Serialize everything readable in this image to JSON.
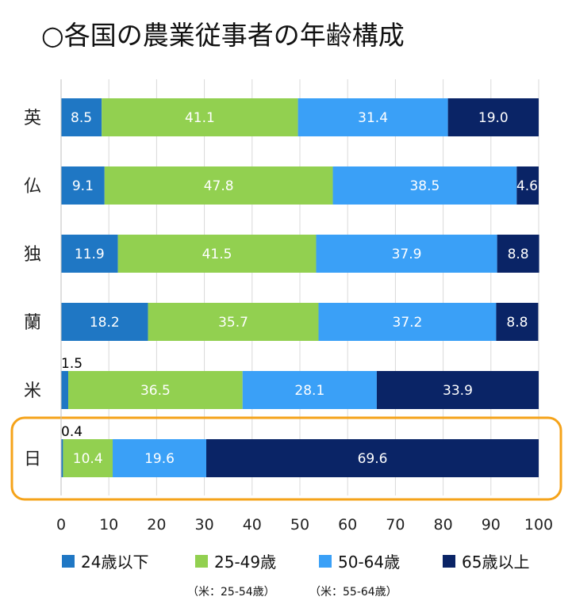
{
  "title": "○各国の農業従事者の年齢構成",
  "chart_data": {
    "type": "bar",
    "orientation": "horizontal",
    "stacked": true,
    "categories": [
      "英",
      "仏",
      "独",
      "蘭",
      "米",
      "日"
    ],
    "series": [
      {
        "name": "24歳以下",
        "color": "#1f77c4",
        "values": [
          8.5,
          9.1,
          11.9,
          18.2,
          1.5,
          0.4
        ]
      },
      {
        "name": "25-49歳",
        "color": "#92d050",
        "values": [
          41.1,
          47.8,
          41.5,
          35.7,
          36.5,
          10.4
        ]
      },
      {
        "name": "50-64歳",
        "color": "#3aa0f7",
        "values": [
          31.4,
          38.5,
          37.9,
          37.2,
          28.1,
          19.6
        ]
      },
      {
        "name": "65歳以上",
        "color": "#0a2466",
        "values": [
          19.0,
          4.6,
          8.8,
          8.8,
          33.9,
          69.6
        ]
      }
    ],
    "xlim": [
      0,
      100
    ],
    "xticks": [
      0,
      10,
      20,
      30,
      40,
      50,
      60,
      70,
      80,
      90,
      100
    ],
    "grid": true,
    "highlight_category": "日",
    "highlight_color": "#f5a31a",
    "legend_notes": [
      "（米：25-54歳）",
      "（米：55-64歳）"
    ]
  }
}
